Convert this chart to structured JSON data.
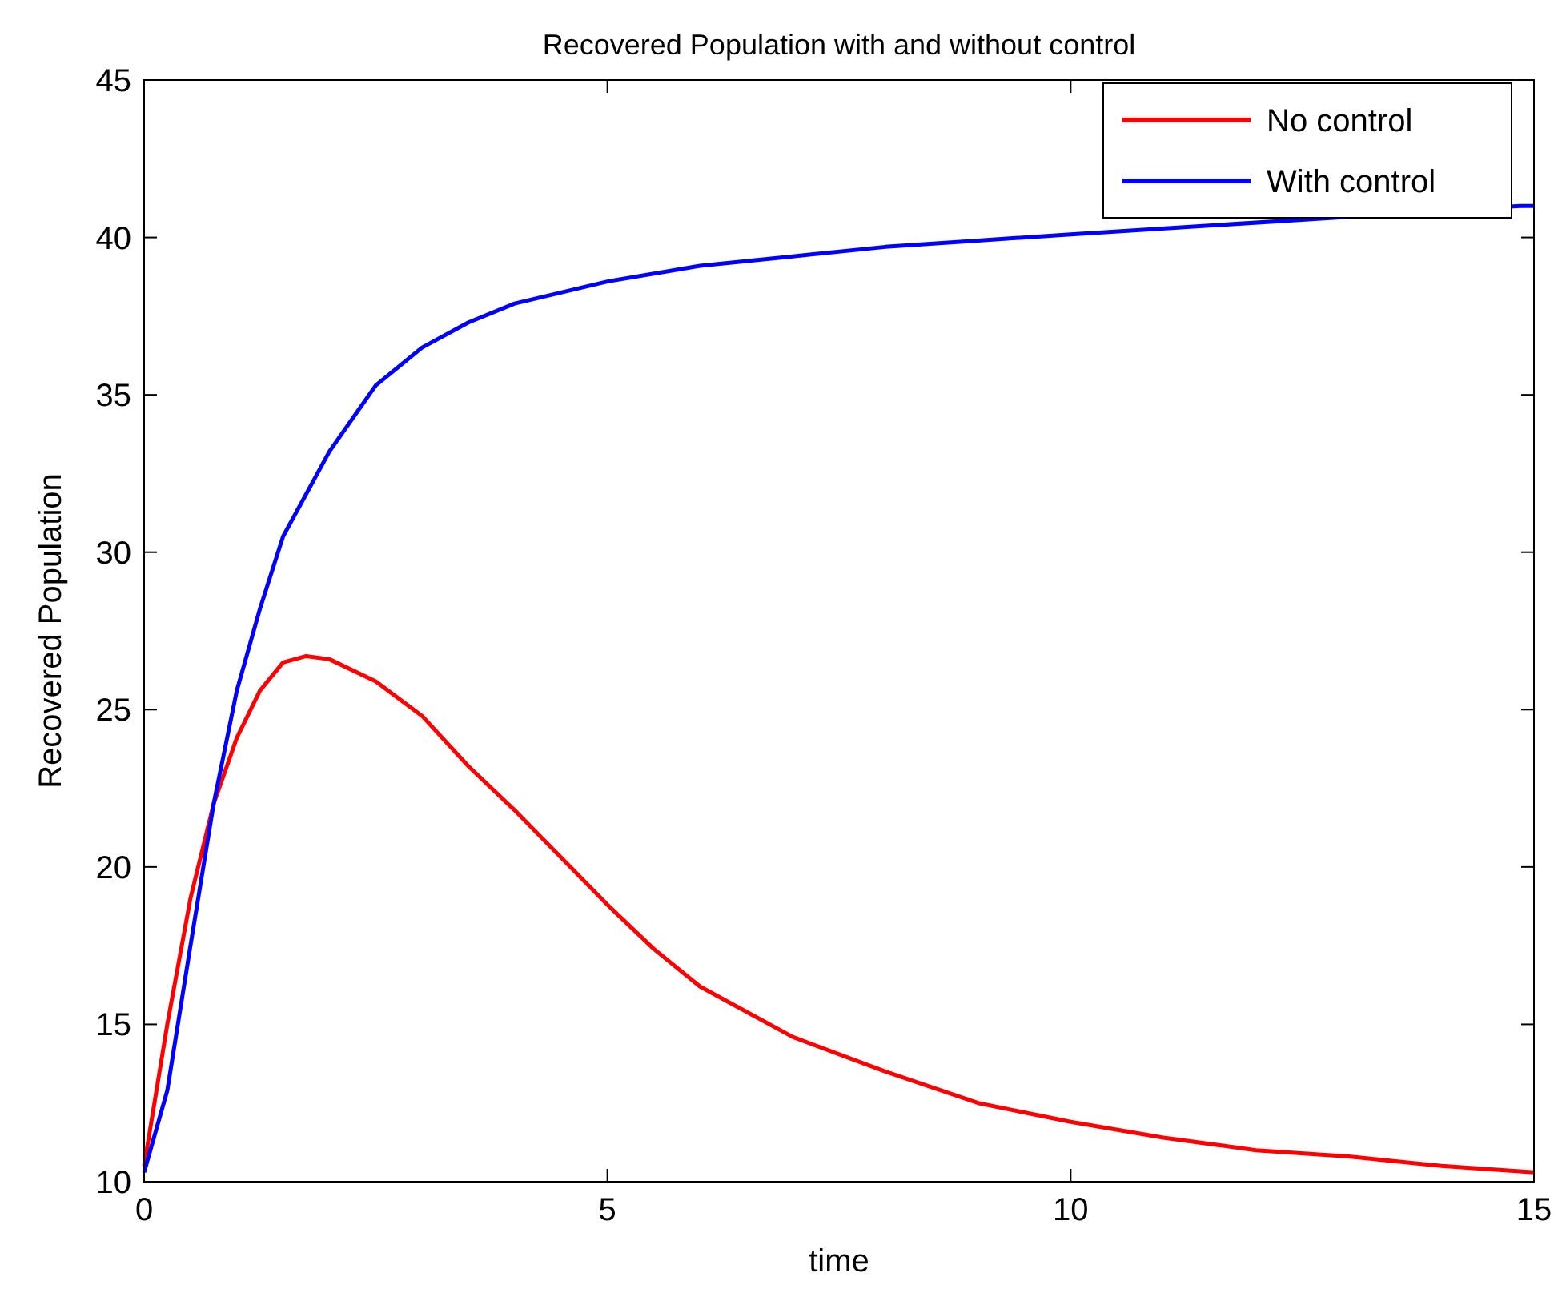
{
  "chart_data": {
    "type": "line",
    "title": "Recovered Population with and without control",
    "xlabel": "time",
    "ylabel": "Recovered Population",
    "xlim": [
      0,
      15
    ],
    "xticks": [
      0,
      5,
      10,
      15
    ],
    "ylim": [
      10,
      45
    ],
    "yticks": [
      10,
      15,
      20,
      25,
      30,
      35,
      40,
      45
    ],
    "grid": false,
    "legend": "top right",
    "line_style": "solid",
    "marker": "none",
    "series": [
      {
        "name": "No control",
        "color": "#ff0000",
        "x": [
          0,
          0.25,
          0.5,
          0.75,
          1,
          1.25,
          1.5,
          1.75,
          2,
          2.5,
          3,
          3.5,
          4,
          4.5,
          5,
          5.5,
          6,
          7,
          8,
          9,
          10,
          11,
          12,
          13,
          14,
          15
        ],
        "values": [
          10.5,
          15,
          19,
          22,
          24.1,
          25.6,
          26.5,
          26.7,
          26.6,
          25.9,
          24.8,
          23.2,
          21.8,
          20.3,
          18.8,
          17.4,
          16.2,
          14.6,
          13.5,
          12.5,
          11.9,
          11.4,
          11,
          10.8,
          10.5,
          10.3
        ]
      },
      {
        "name": "With control",
        "color": "#0000ff",
        "x": [
          0,
          0.25,
          0.5,
          0.75,
          1,
          1.25,
          1.5,
          2,
          2.5,
          3,
          3.5,
          4,
          5,
          6,
          7,
          8,
          9,
          10,
          14.85,
          15
        ],
        "values": [
          10.3,
          12.9,
          17.5,
          22,
          25.6,
          28.2,
          30.5,
          33.2,
          35.3,
          36.5,
          37.3,
          37.9,
          38.6,
          39.1,
          39.4,
          39.7,
          39.9,
          40.1,
          41,
          41
        ]
      }
    ]
  }
}
